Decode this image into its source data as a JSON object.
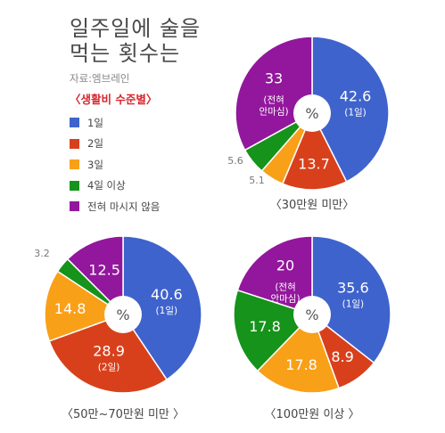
{
  "header": {
    "title_line1": "일주일에 술을",
    "title_line2": "먹는 횟수는",
    "source": "자료:엠브레인",
    "subtitle": "〈생활비 수준별〉"
  },
  "colors": {
    "1일": "#3f63cc",
    "2일": "#d8401c",
    "3일": "#f9a019",
    "4일 이상": "#15931a",
    "전혀 마시지 않음": "#92179c"
  },
  "legend": [
    {
      "label": "1일"
    },
    {
      "label": "2일"
    },
    {
      "label": "3일"
    },
    {
      "label": "4일 이상"
    },
    {
      "label": "전혀 마시지 않음"
    }
  ],
  "chart_data": [
    {
      "type": "pie",
      "title": "〈30만원 미만〉",
      "center_label": "%",
      "labels": [
        "1일",
        "2일",
        "3일",
        "4일 이상",
        "전혀 마시지 않음"
      ],
      "values": [
        42.6,
        13.7,
        5.1,
        5.6,
        33
      ],
      "value_labels": [
        "42.6",
        "13.7",
        "5.1",
        "5.6",
        "33"
      ],
      "sub_labels": [
        "(1일)",
        "",
        "",
        "",
        "(전혀 안마심)"
      ]
    },
    {
      "type": "pie",
      "title": "〈50만~70만원 미만 〉",
      "center_label": "%",
      "labels": [
        "1일",
        "2일",
        "3일",
        "4일 이상",
        "전혀 마시지 않음"
      ],
      "values": [
        40.6,
        28.9,
        14.8,
        3.2,
        12.5
      ],
      "value_labels": [
        "40.6",
        "28.9",
        "14.8",
        "3.2",
        "12.5"
      ],
      "sub_labels": [
        "(1일)",
        "(2일)",
        "",
        "",
        ""
      ]
    },
    {
      "type": "pie",
      "title": "〈100만원 이상 〉",
      "center_label": "%",
      "labels": [
        "1일",
        "2일",
        "3일",
        "4일 이상",
        "전혀 마시지 않음"
      ],
      "values": [
        35.6,
        8.9,
        17.8,
        17.8,
        20
      ],
      "value_labels": [
        "35.6",
        "8.9",
        "17.8",
        "17.8",
        "20"
      ],
      "sub_labels": [
        "(1일)",
        "",
        "",
        "",
        "(전혀 안마심)"
      ]
    }
  ]
}
